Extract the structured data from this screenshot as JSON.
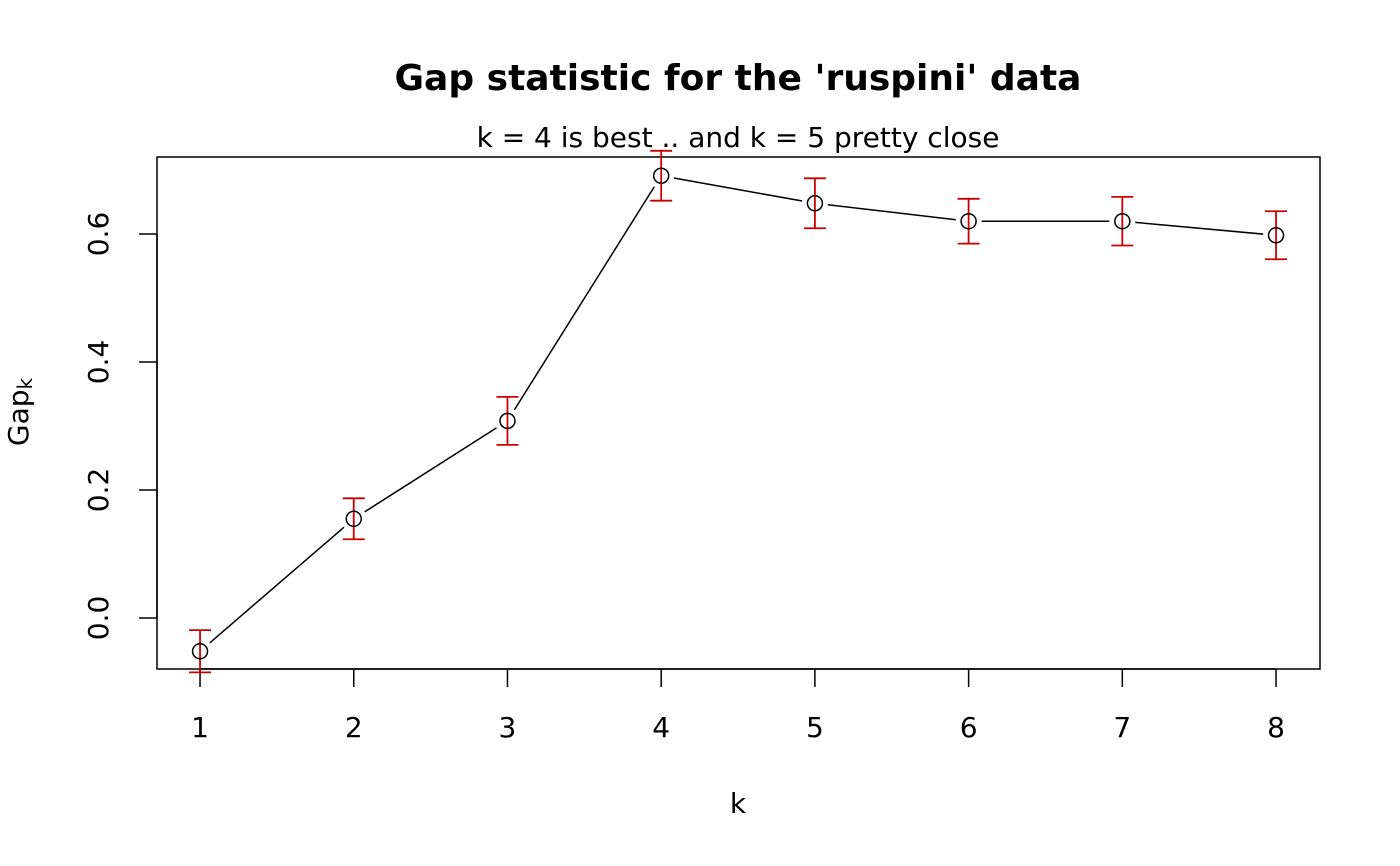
{
  "chart_data": {
    "type": "line",
    "title": "Gap statistic for the 'ruspini' data",
    "subtitle": "k = 4 is best .. and  k = 5  pretty close",
    "xlabel": "k",
    "ylabel": {
      "text": "Gap",
      "subscript": "k"
    },
    "x": [
      1,
      2,
      3,
      4,
      5,
      6,
      7,
      8
    ],
    "values": [
      -0.052,
      0.155,
      0.308,
      0.691,
      0.648,
      0.62,
      0.62,
      0.598
    ],
    "errors": [
      0.033,
      0.032,
      0.0375,
      0.039,
      0.039,
      0.035,
      0.038,
      0.0375
    ],
    "color": "#000000",
    "error_color": "#cd0000",
    "xlim": [
      0.72,
      8.286
    ],
    "ylim": [
      -0.0797,
      0.7203
    ],
    "xticks": [
      1,
      2,
      3,
      4,
      5,
      6,
      7,
      8
    ],
    "yticks": [
      {
        "value": 0,
        "label": "0.0"
      },
      0.2,
      0.4,
      0.6
    ]
  }
}
